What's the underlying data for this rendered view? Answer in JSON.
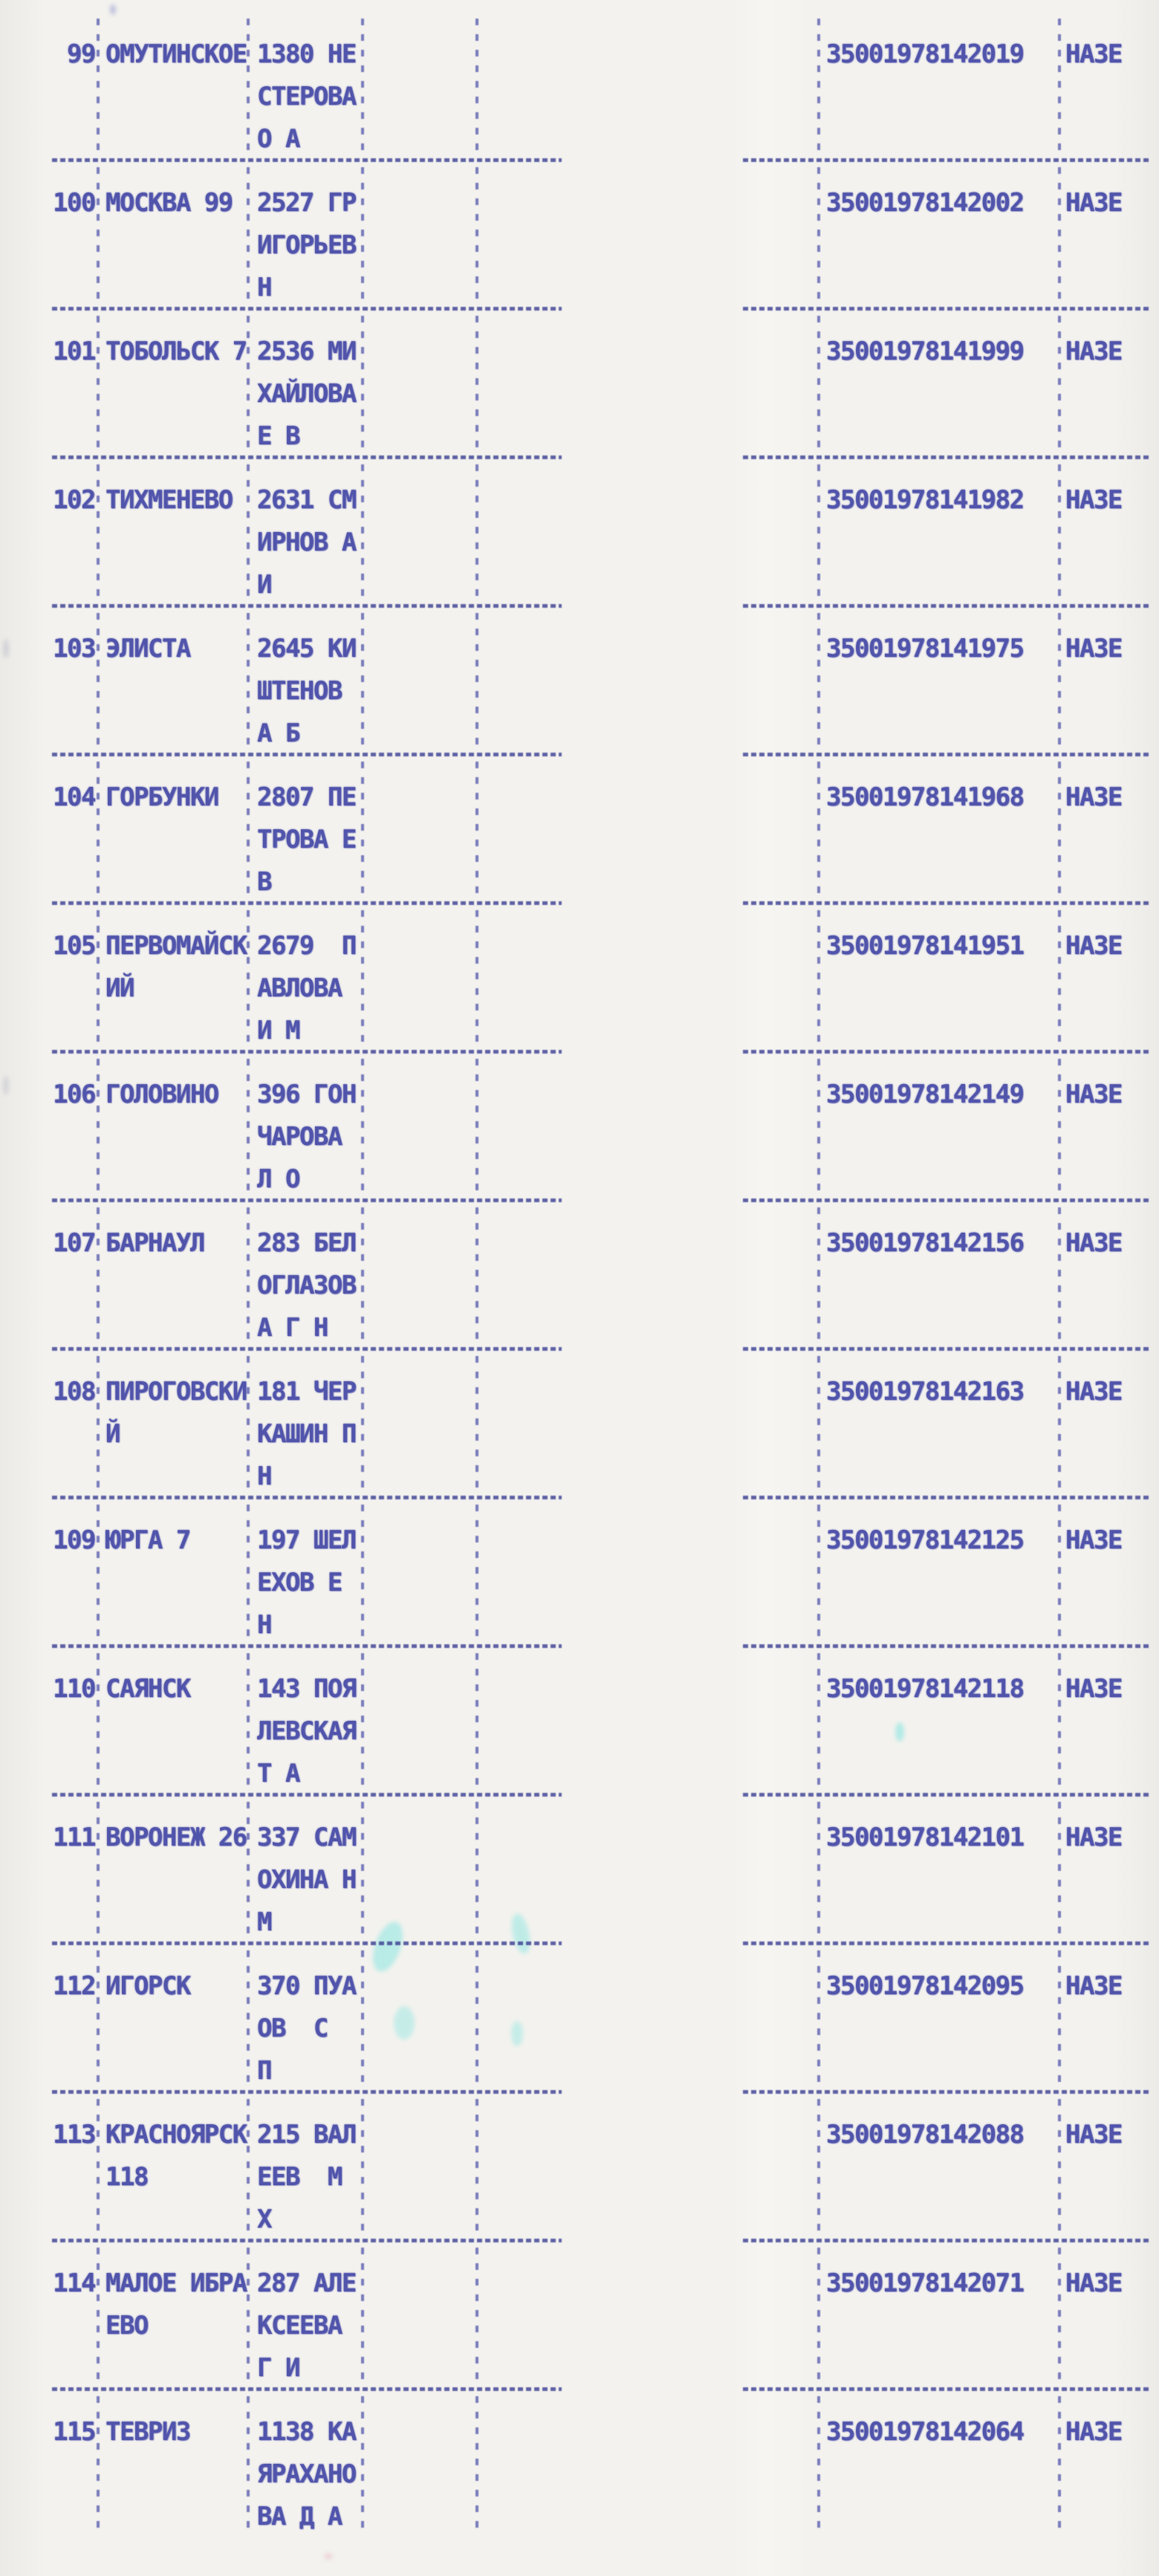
{
  "document": {
    "kind": "scanned dot-matrix printed table, Cyrillic",
    "status_label": "НАЗЕ"
  },
  "colors": {
    "ink": "#4549a6",
    "ink_dark": "#393d92",
    "paper": "#f3f2ee",
    "artifact_cyan": "#74e3df",
    "artifact_pink": "#e8b8c8"
  },
  "table": {
    "rows": [
      {
        "num": "99",
        "city": [
          "ОМУТИНСКОЕ",
          ""
        ],
        "person": [
          "1380 НЕ",
          "СТЕРОВА",
          "О А"
        ],
        "code": "35001978142019",
        "status": "НАЗЕ"
      },
      {
        "num": "100",
        "city": [
          "МОСКВА 99",
          ""
        ],
        "person": [
          "2527 ГР",
          "ИГОРЬЕВ",
          "Н"
        ],
        "code": "35001978142002",
        "status": "НАЗЕ"
      },
      {
        "num": "101",
        "city": [
          "ТОБОЛЬСК 7",
          ""
        ],
        "person": [
          "2536 МИ",
          "ХАЙЛОВА",
          "Е В"
        ],
        "code": "35001978141999",
        "status": "НАЗЕ"
      },
      {
        "num": "102",
        "city": [
          "ТИХМЕНЕВО",
          ""
        ],
        "person": [
          "2631 СМ",
          "ИРНОВ А",
          "И"
        ],
        "code": "35001978141982",
        "status": "НАЗЕ"
      },
      {
        "num": "103",
        "city": [
          "ЭЛИСТА",
          ""
        ],
        "person": [
          "2645 КИ",
          "ШТЕНОВ",
          "А Б"
        ],
        "code": "35001978141975",
        "status": "НАЗЕ"
      },
      {
        "num": "104",
        "city": [
          "ГОРБУНКИ",
          ""
        ],
        "person": [
          "2807 ПЕ",
          "ТРОВА Е",
          "В"
        ],
        "code": "35001978141968",
        "status": "НАЗЕ"
      },
      {
        "num": "105",
        "city": [
          "ПЕРВОМАЙСК",
          "ИЙ"
        ],
        "person": [
          "2679  П",
          "АВЛОВА",
          "И М"
        ],
        "code": "35001978141951",
        "status": "НАЗЕ"
      },
      {
        "num": "106",
        "city": [
          "ГОЛОВИНО",
          ""
        ],
        "person": [
          "396 ГОН",
          "ЧАРОВА",
          "Л О"
        ],
        "code": "35001978142149",
        "status": "НАЗЕ"
      },
      {
        "num": "107",
        "city": [
          "БАРНАУЛ",
          ""
        ],
        "person": [
          "283 БЕЛ",
          "ОГЛАЗОВ",
          "А Г Н"
        ],
        "code": "35001978142156",
        "status": "НАЗЕ"
      },
      {
        "num": "108",
        "city": [
          "ПИРОГОВСКИ",
          "Й"
        ],
        "person": [
          "181 ЧЕР",
          "КАШИН П",
          "Н"
        ],
        "code": "35001978142163",
        "status": "НАЗЕ"
      },
      {
        "num": "109",
        "city": [
          "ЮРГА 7",
          ""
        ],
        "person": [
          "197 ШЕЛ",
          "ЕХОВ Е",
          "Н"
        ],
        "code": "35001978142125",
        "status": "НАЗЕ"
      },
      {
        "num": "110",
        "city": [
          "САЯНСК",
          ""
        ],
        "person": [
          "143 ПОЯ",
          "ЛЕВСКАЯ",
          "Т А"
        ],
        "code": "35001978142118",
        "status": "НАЗЕ"
      },
      {
        "num": "111",
        "city": [
          "ВОРОНЕЖ 26",
          ""
        ],
        "person": [
          "337 САМ",
          "ОХИНА Н",
          "М"
        ],
        "code": "35001978142101",
        "status": "НАЗЕ"
      },
      {
        "num": "112",
        "city": [
          "ИГОРСК",
          ""
        ],
        "person": [
          "370 ПУА",
          "ОВ  С",
          "П"
        ],
        "code": "35001978142095",
        "status": "НАЗЕ"
      },
      {
        "num": "113",
        "city": [
          "КРАСНОЯРСК",
          "118"
        ],
        "person": [
          "215 ВАЛ",
          "ЕЕВ  М",
          "Х"
        ],
        "code": "35001978142088",
        "status": "НАЗЕ"
      },
      {
        "num": "114",
        "city": [
          "МАЛОЕ ИБРА",
          "ЕВО"
        ],
        "person": [
          "287 АЛЕ",
          "КСЕЕВА",
          "Г И"
        ],
        "code": "35001978142071",
        "status": "НАЗЕ"
      },
      {
        "num": "115",
        "city": [
          "ТЕВРИЗ",
          ""
        ],
        "person": [
          "1138 КА",
          "ЯРАХАНО",
          "ВА Д А"
        ],
        "code": "35001978142064",
        "status": "НАЗЕ"
      }
    ]
  }
}
